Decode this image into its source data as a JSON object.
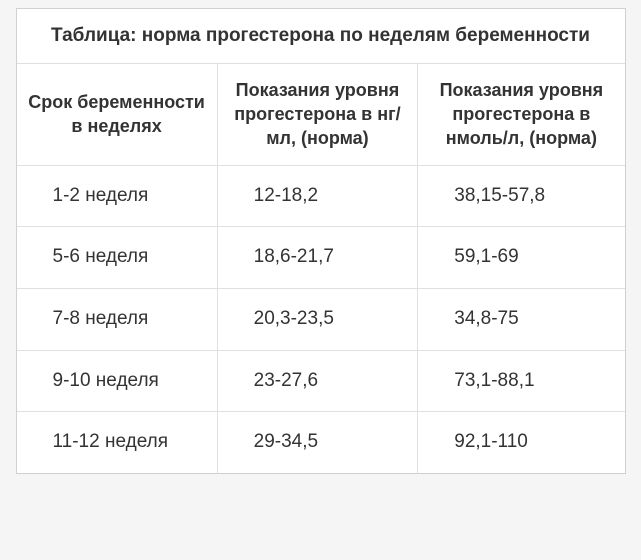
{
  "table": {
    "type": "table",
    "caption": "Таблица: норма прогестерона по неделям беременности",
    "background_color": "#ffffff",
    "border_color": "#e0e0e0",
    "text_color": "#333333",
    "header_fontsize": 18,
    "cell_fontsize": 19,
    "columns": [
      "Срок беременности в неделях",
      "Показания уровня прогестерона в нг/мл, (норма)",
      "Показания уровня прогестерона в нмоль/л, (норма)"
    ],
    "rows": [
      [
        "1-2 неделя",
        "12-18,2",
        "38,15-57,8"
      ],
      [
        "5-6 неделя",
        "18,6-21,7",
        "59,1-69"
      ],
      [
        "7-8 неделя",
        "20,3-23,5",
        "34,8-75"
      ],
      [
        "9-10 неделя",
        "23-27,6",
        "73,1-88,1"
      ],
      [
        "11-12 неделя",
        "29-34,5",
        "92,1-110"
      ]
    ]
  }
}
